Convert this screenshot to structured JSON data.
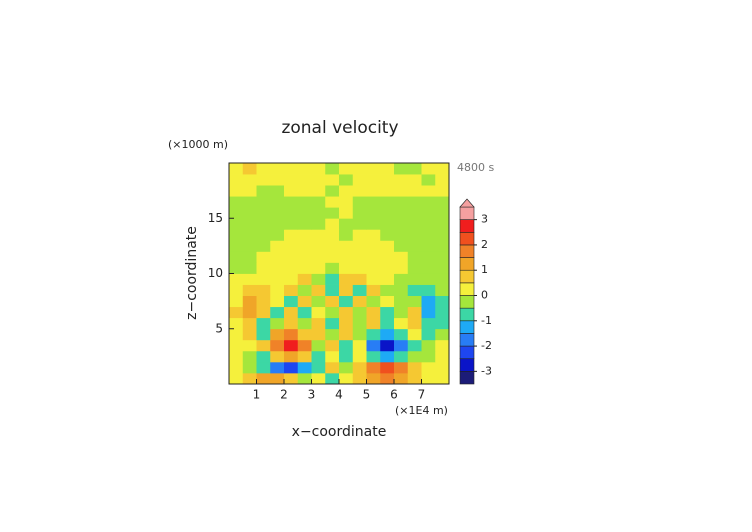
{
  "chart_data": {
    "type": "contour",
    "title": "zonal velocity",
    "x_label": "x−coordinate",
    "y_label": "z−coordinate",
    "x_unit": "(×1E4 m)",
    "y_unit": "(×1000 m)",
    "time": "4800 s",
    "xlim": [
      0,
      8
    ],
    "ylim": [
      0,
      20
    ],
    "xticks": [
      1,
      2,
      3,
      4,
      5,
      6,
      7
    ],
    "yticks": [
      5,
      10,
      15
    ],
    "x": [
      0.25,
      0.75,
      1.25,
      1.75,
      2.25,
      2.75,
      3.25,
      3.75,
      4.25,
      4.75,
      5.25,
      5.75,
      6.25,
      6.75,
      7.25,
      7.75
    ],
    "y": [
      0.5,
      1.5,
      2.5,
      3.5,
      4.5,
      5.5,
      6.5,
      7.5,
      8.5,
      9.5,
      10.5,
      11.5,
      12.5,
      13.5,
      14.5,
      15.5,
      16.5,
      17.5,
      18.5,
      19.5
    ],
    "z": [
      [
        0.3,
        0.7,
        1.1,
        1.2,
        0.6,
        -0.3,
        0.2,
        -0.6,
        0.4,
        0.8,
        1.4,
        1.8,
        1.2,
        0.7,
        0.3,
        0.2
      ],
      [
        0.2,
        -0.3,
        -1.0,
        -1.6,
        -2.1,
        -1.4,
        -0.6,
        0.5,
        -0.5,
        0.9,
        1.8,
        2.3,
        1.5,
        0.6,
        0.2,
        0.1
      ],
      [
        0.2,
        -0.2,
        -0.8,
        0.6,
        1.4,
        0.6,
        -0.7,
        0.4,
        -0.6,
        0.3,
        -0.8,
        -1.5,
        -0.9,
        -0.5,
        -0.2,
        0.1
      ],
      [
        0.1,
        0.3,
        0.9,
        1.8,
        2.7,
        1.6,
        -0.3,
        0.6,
        -0.8,
        0.4,
        -1.6,
        -2.6,
        -1.8,
        -0.8,
        -0.3,
        0.1
      ],
      [
        0.2,
        0.6,
        -0.6,
        1.0,
        1.5,
        0.6,
        0.5,
        -0.4,
        0.5,
        -0.5,
        -0.8,
        -1.5,
        -0.9,
        0.4,
        -0.6,
        -0.4
      ],
      [
        0.4,
        0.9,
        -0.7,
        -0.4,
        0.8,
        -0.5,
        0.6,
        -0.6,
        0.6,
        -0.4,
        0.5,
        -0.6,
        0.3,
        0.6,
        -1.0,
        -0.6
      ],
      [
        0.5,
        1.1,
        0.6,
        -0.6,
        0.5,
        -0.6,
        0.4,
        -0.5,
        0.5,
        -0.4,
        0.6,
        -0.6,
        -0.4,
        0.5,
        -1.2,
        -0.7
      ],
      [
        0.4,
        1.0,
        0.7,
        0.2,
        -0.6,
        0.6,
        -0.5,
        0.6,
        -0.6,
        0.5,
        -0.5,
        0.3,
        -0.4,
        -0.5,
        -1.1,
        -0.6
      ],
      [
        0.3,
        0.7,
        0.5,
        0.3,
        0.5,
        -0.4,
        0.7,
        -0.7,
        0.6,
        -0.6,
        0.5,
        -0.3,
        -0.4,
        -0.6,
        -0.8,
        -0.4
      ],
      [
        0.1,
        0.2,
        0.3,
        0.4,
        0.3,
        0.6,
        -0.5,
        -1.0,
        0.8,
        0.5,
        0.3,
        0.2,
        -0.2,
        -0.3,
        -0.4,
        -0.2
      ],
      [
        -0.2,
        -0.1,
        0.2,
        0.3,
        0.4,
        0.3,
        0.2,
        -0.3,
        0.3,
        0.3,
        0.3,
        0.2,
        0.2,
        -0.1,
        -0.2,
        -0.2
      ],
      [
        -0.2,
        -0.2,
        0.1,
        0.2,
        0.3,
        0.3,
        0.2,
        0.1,
        0.2,
        0.2,
        0.3,
        0.3,
        0.1,
        -0.1,
        -0.2,
        -0.2
      ],
      [
        -0.2,
        -0.2,
        -0.1,
        0.1,
        0.2,
        0.2,
        0.2,
        0.1,
        0.2,
        0.2,
        0.2,
        0.1,
        -0.1,
        -0.2,
        -0.2,
        -0.2
      ],
      [
        -0.2,
        -0.2,
        -0.2,
        -0.1,
        0.1,
        0.1,
        0.1,
        0.2,
        -0.2,
        0.1,
        0.1,
        -0.1,
        -0.2,
        -0.2,
        -0.2,
        -0.2
      ],
      [
        -0.2,
        -0.2,
        -0.2,
        -0.2,
        -0.2,
        -0.1,
        -0.2,
        0.2,
        -0.2,
        -0.2,
        -0.2,
        -0.2,
        -0.2,
        -0.2,
        -0.2,
        -0.2
      ],
      [
        -0.2,
        -0.2,
        -0.2,
        -0.2,
        -0.2,
        -0.2,
        -0.2,
        -0.2,
        0.2,
        -0.2,
        -0.2,
        -0.2,
        -0.2,
        -0.2,
        -0.2,
        -0.2
      ],
      [
        -0.2,
        -0.2,
        -0.2,
        -0.2,
        -0.2,
        -0.2,
        -0.2,
        0.2,
        0.2,
        -0.2,
        -0.2,
        -0.2,
        -0.1,
        -0.2,
        -0.2,
        -0.2
      ],
      [
        0.2,
        0.2,
        -0.2,
        -0.1,
        0.1,
        0.2,
        0.2,
        -0.2,
        0.2,
        0.2,
        0.2,
        0.1,
        0.1,
        0.2,
        0.2,
        0.2
      ],
      [
        0.2,
        0.3,
        0.2,
        0.2,
        0.2,
        0.3,
        0.2,
        0.2,
        -0.2,
        0.2,
        0.2,
        0.2,
        0.2,
        0.2,
        -0.1,
        0.2
      ],
      [
        0.3,
        0.6,
        0.3,
        0.2,
        0.2,
        0.2,
        0.2,
        -0.2,
        0.2,
        0.2,
        0.2,
        0.2,
        -0.2,
        -0.2,
        0.2,
        0.2
      ]
    ],
    "colorbar": {
      "levels": [
        -3.5,
        -3,
        -2.5,
        -2,
        -1.5,
        -1,
        -0.5,
        0,
        0.5,
        1,
        1.5,
        2,
        2.5,
        3,
        3.5
      ],
      "colors": [
        "#1c1c78",
        "#0a14c8",
        "#1e46f0",
        "#287df5",
        "#1eaaf5",
        "#3cd7a5",
        "#a5e63c",
        "#f5f03c",
        "#f5c832",
        "#f0a528",
        "#f08228",
        "#f0501e",
        "#f01e1e",
        "#f5a0a0"
      ],
      "extend": "max",
      "ticks": [
        -3,
        -2,
        -1,
        0,
        1,
        2,
        3
      ]
    }
  }
}
